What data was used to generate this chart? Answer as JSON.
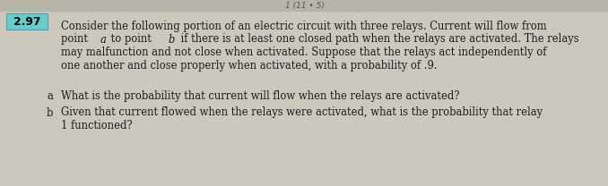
{
  "problem_number": "2.97",
  "number_box_facecolor": "#62cece",
  "number_box_edgecolor": "#3aacac",
  "number_text_color": "#000000",
  "background_color": "#ccc9bc",
  "text_color": "#1c1c1c",
  "font_size_main": 8.3,
  "font_size_number": 8.8,
  "line1": "Consider the following portion of an electric circuit with three relays. Current will flow from",
  "line2_pre": "point ",
  "line2_ita": "a",
  "line2_mid": " to point ",
  "line2_itb": "b",
  "line2_post": " if there is at least one closed path when the relays are activated. The relays",
  "line3": "may malfunction and not close when activated. Suppose that the relays act independently of",
  "line4": "one another and close properly when activated, with a probability of .9.",
  "part_a_label": "a",
  "part_a_text": "What is the probability that current will flow when the relays are activated?",
  "part_b_label": "b",
  "part_b_text_line1": "Given that current flowed when the relays were activated, what is the probability that relay",
  "part_b_text_line2": "1 functioned?",
  "top_strip_color": "#b8b4a8",
  "top_strip_text": "1 (11 • 5)"
}
